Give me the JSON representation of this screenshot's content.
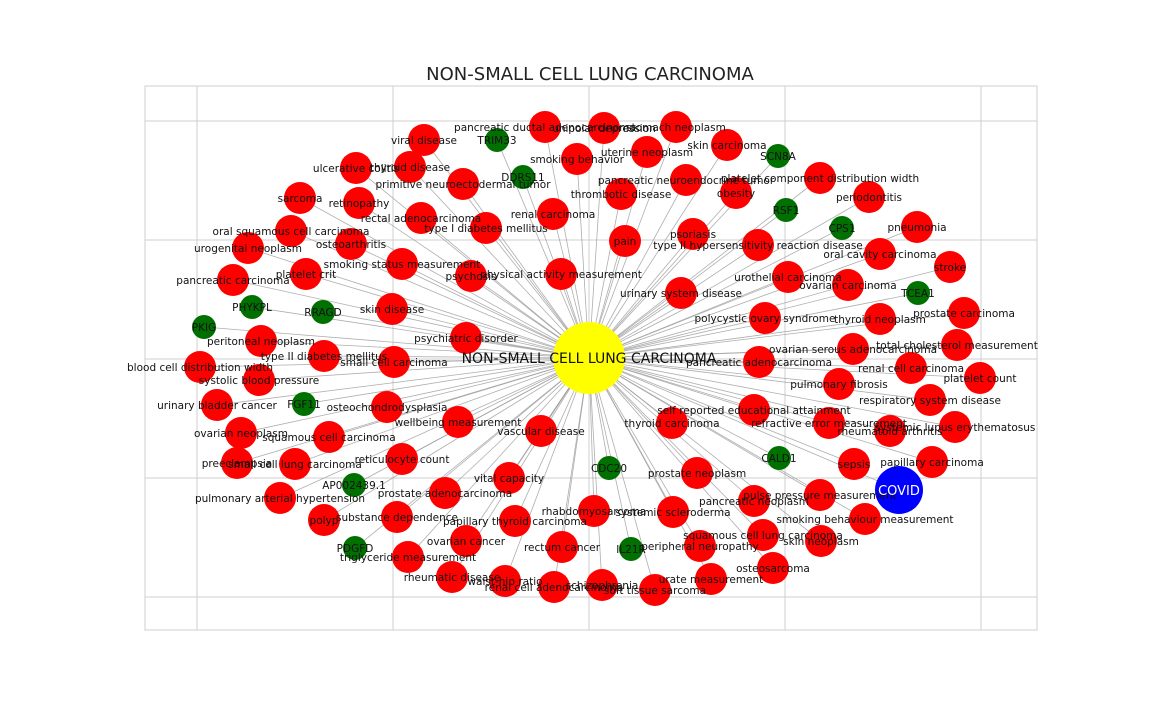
{
  "title": "NON-SMALL CELL LUNG CARCINOMA",
  "colors": {
    "background": "#ffffff",
    "disease": "#ff0000",
    "gene": "#007000",
    "hub": "#ffff00",
    "covid": "#0000ff",
    "edge": "#9a9a9a",
    "grid": "#cfcfcf"
  },
  "hub": {
    "label": "NON-SMALL CELL LUNG CARCINOMA",
    "type": "hub"
  },
  "covid": {
    "label": "COVID",
    "type": "covid"
  },
  "nodes": [
    {
      "label": "pancreatic ductal adenocarcinoma",
      "type": "disease"
    },
    {
      "label": "unipolar depression",
      "type": "disease"
    },
    {
      "label": "stomach neoplasm",
      "type": "disease"
    },
    {
      "label": "viral disease",
      "type": "disease"
    },
    {
      "label": "TRIM33",
      "type": "gene"
    },
    {
      "label": "uterine neoplasm",
      "type": "disease"
    },
    {
      "label": "skin carcinoma",
      "type": "disease"
    },
    {
      "label": "SCN8A",
      "type": "gene"
    },
    {
      "label": "ulcerative colitis",
      "type": "disease"
    },
    {
      "label": "thyroid disease",
      "type": "disease"
    },
    {
      "label": "smoking behavior",
      "type": "disease"
    },
    {
      "label": "DDRS11",
      "type": "gene"
    },
    {
      "label": "primitive neuroectodermal tumor",
      "type": "disease"
    },
    {
      "label": "thrombotic disease",
      "type": "disease"
    },
    {
      "label": "pancreatic neuroendocrine tumor",
      "type": "disease"
    },
    {
      "label": "obesity",
      "type": "disease"
    },
    {
      "label": "platelet component distribution width",
      "type": "disease"
    },
    {
      "label": "periodontitis",
      "type": "disease"
    },
    {
      "label": "sarcoma",
      "type": "disease"
    },
    {
      "label": "retinopathy",
      "type": "disease"
    },
    {
      "label": "RSF1",
      "type": "gene"
    },
    {
      "label": "rectal adenocarcinoma",
      "type": "disease"
    },
    {
      "label": "renal carcinoma",
      "type": "disease"
    },
    {
      "label": "oral squamous cell carcinoma",
      "type": "disease"
    },
    {
      "label": "type I diabetes mellitus",
      "type": "disease"
    },
    {
      "label": "CPS1",
      "type": "gene"
    },
    {
      "label": "pneumonia",
      "type": "disease"
    },
    {
      "label": "osteoarthritis",
      "type": "disease"
    },
    {
      "label": "psoriasis",
      "type": "disease"
    },
    {
      "label": "urogenital neoplasm",
      "type": "disease"
    },
    {
      "label": "pain",
      "type": "disease"
    },
    {
      "label": "type II hypersensitivity reaction disease",
      "type": "disease"
    },
    {
      "label": "oral cavity carcinoma",
      "type": "disease"
    },
    {
      "label": "smoking status measurement",
      "type": "disease"
    },
    {
      "label": "stroke",
      "type": "disease"
    },
    {
      "label": "platelet crit",
      "type": "disease"
    },
    {
      "label": "psychosis",
      "type": "disease"
    },
    {
      "label": "physical activity measurement",
      "type": "disease"
    },
    {
      "label": "urothelial carcinoma",
      "type": "disease"
    },
    {
      "label": "pancreatic carcinoma",
      "type": "disease"
    },
    {
      "label": "ovarian carcinoma",
      "type": "disease"
    },
    {
      "label": "TCEA1",
      "type": "gene"
    },
    {
      "label": "urinary system disease",
      "type": "disease"
    },
    {
      "label": "PHYKPL",
      "type": "gene"
    },
    {
      "label": "RRAGD",
      "type": "gene"
    },
    {
      "label": "skin disease",
      "type": "disease"
    },
    {
      "label": "prostate carcinoma",
      "type": "disease"
    },
    {
      "label": "polycystic ovary syndrome",
      "type": "disease"
    },
    {
      "label": "thyroid neoplasm",
      "type": "disease"
    },
    {
      "label": "PKIG",
      "type": "gene"
    },
    {
      "label": "peritoneal neoplasm",
      "type": "disease"
    },
    {
      "label": "psychiatric disorder",
      "type": "disease"
    },
    {
      "label": "total cholesterol measurement",
      "type": "disease"
    },
    {
      "label": "ovarian serous adenocarcinoma",
      "type": "disease"
    },
    {
      "label": "type II diabetes mellitus",
      "type": "disease"
    },
    {
      "label": "small cell carcinoma",
      "type": "disease"
    },
    {
      "label": "pancreatic adenocarcinoma",
      "type": "disease"
    },
    {
      "label": "blood cell distribution width",
      "type": "disease"
    },
    {
      "label": "renal cell carcinoma",
      "type": "disease"
    },
    {
      "label": "systolic blood pressure",
      "type": "disease"
    },
    {
      "label": "platelet count",
      "type": "disease"
    },
    {
      "label": "pulmonary fibrosis",
      "type": "disease"
    },
    {
      "label": "urinary bladder cancer",
      "type": "disease"
    },
    {
      "label": "FGF11",
      "type": "gene"
    },
    {
      "label": "osteochondrodysplasia",
      "type": "disease"
    },
    {
      "label": "respiratory system disease",
      "type": "disease"
    },
    {
      "label": "self reported educational attainment",
      "type": "disease"
    },
    {
      "label": "wellbeing measurement",
      "type": "disease"
    },
    {
      "label": "refractive error measurement",
      "type": "disease"
    },
    {
      "label": "rheumatoid arthritis",
      "type": "disease"
    },
    {
      "label": "systemic lupus erythematosus",
      "type": "disease"
    },
    {
      "label": "ovarian neoplasm",
      "type": "disease"
    },
    {
      "label": "thyroid carcinoma",
      "type": "disease"
    },
    {
      "label": "vascular disease",
      "type": "disease"
    },
    {
      "label": "squamous cell carcinoma",
      "type": "disease"
    },
    {
      "label": "preeclampsia",
      "type": "disease"
    },
    {
      "label": "small cell lung carcinoma",
      "type": "disease"
    },
    {
      "label": "reticulocyte count",
      "type": "disease"
    },
    {
      "label": "CALD1",
      "type": "gene"
    },
    {
      "label": "sepsis",
      "type": "disease"
    },
    {
      "label": "papillary carcinoma",
      "type": "disease"
    },
    {
      "label": "CDC20",
      "type": "gene"
    },
    {
      "label": "prostate neoplasm",
      "type": "disease"
    },
    {
      "label": "vital capacity",
      "type": "disease"
    },
    {
      "label": "AP002439.1",
      "type": "gene"
    },
    {
      "label": "prostate adenocarcinoma",
      "type": "disease"
    },
    {
      "label": "pulse pressure measurement",
      "type": "disease"
    },
    {
      "label": "pancreatic neoplasm",
      "type": "disease"
    },
    {
      "label": "pulmonary arterial hypertension",
      "type": "disease"
    },
    {
      "label": "rhabdomyosarcoma",
      "type": "disease"
    },
    {
      "label": "systemic scleroderma",
      "type": "disease"
    },
    {
      "label": "smoking behaviour measurement",
      "type": "disease"
    },
    {
      "label": "polyp",
      "type": "disease"
    },
    {
      "label": "substance dependence",
      "type": "disease"
    },
    {
      "label": "papillary thyroid carcinoma",
      "type": "disease"
    },
    {
      "label": "squamous cell lung carcinoma",
      "type": "disease"
    },
    {
      "label": "skin neoplasm",
      "type": "disease"
    },
    {
      "label": "ovarian cancer",
      "type": "disease"
    },
    {
      "label": "PDGFD",
      "type": "gene"
    },
    {
      "label": "rectum cancer",
      "type": "disease"
    },
    {
      "label": "IL21R",
      "type": "gene"
    },
    {
      "label": "peripheral neuropathy",
      "type": "disease"
    },
    {
      "label": "triglyceride measurement",
      "type": "disease"
    },
    {
      "label": "osteosarcoma",
      "type": "disease"
    },
    {
      "label": "rheumatic disease",
      "type": "disease"
    },
    {
      "label": "waist-hip ratio",
      "type": "disease"
    },
    {
      "label": "renal cell adenocarcinoma",
      "type": "disease"
    },
    {
      "label": "schizophrenia",
      "type": "disease"
    },
    {
      "label": "urate measurement",
      "type": "disease"
    },
    {
      "label": "soft tissue sarcoma",
      "type": "disease"
    }
  ]
}
